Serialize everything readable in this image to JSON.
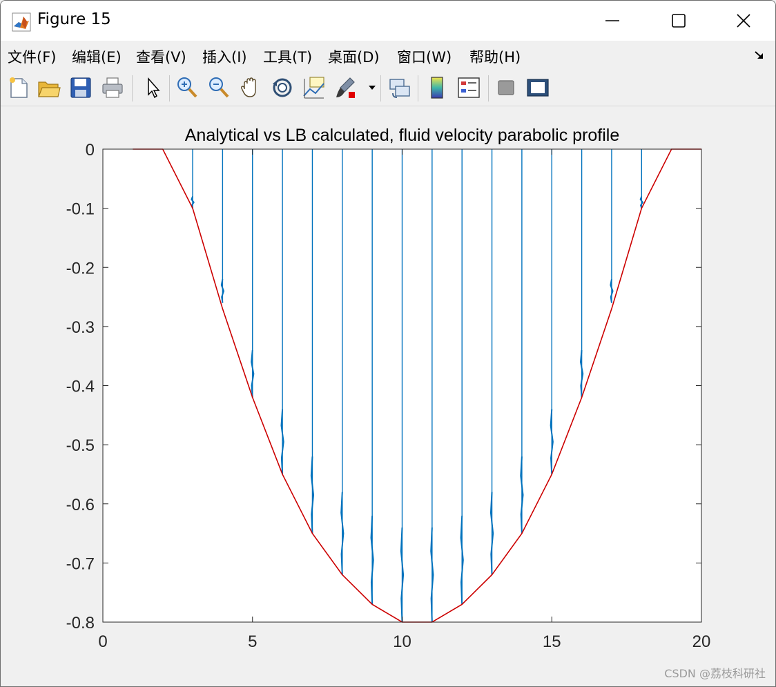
{
  "window": {
    "title": "Figure 15"
  },
  "icons": {
    "app": "matlab-icon",
    "minimize": "minimize-icon",
    "maximize": "maximize-icon",
    "close": "close-icon",
    "dock": "dock-arrow-icon"
  },
  "menubar": {
    "items": [
      "文件(F)",
      "编辑(E)",
      "查看(V)",
      "插入(I)",
      "工具(T)",
      "桌面(D)",
      "窗口(W)",
      "帮助(H)"
    ]
  },
  "toolbar": {
    "buttons": [
      "new-figure",
      "open-file",
      "save",
      "print",
      "select-pointer",
      "zoom-in",
      "zoom-out",
      "pan-hand",
      "rotate-3d",
      "data-cursor",
      "brush",
      "link-plot",
      "insert-colorbar",
      "insert-legend",
      "hide-plot-tools",
      "show-plot-tools"
    ]
  },
  "colors": {
    "analytical": "#cc0000",
    "lb": "#0072bd",
    "axes_bg": "#ffffff",
    "figure_bg": "#f0f0f0"
  },
  "chart_data": {
    "type": "line",
    "title": "Analytical vs LB calculated, fluid velocity parabolic profile",
    "xlabel": "",
    "ylabel": "",
    "xlim": [
      0,
      20
    ],
    "ylim": [
      -0.8,
      0
    ],
    "xticks": [
      "0",
      "5",
      "10",
      "15",
      "20"
    ],
    "yticks": [
      "0",
      "-0.1",
      "-0.2",
      "-0.3",
      "-0.4",
      "-0.5",
      "-0.6",
      "-0.7",
      "-0.8"
    ],
    "grid": false,
    "box": true,
    "series": [
      {
        "style": "red-line",
        "x": [
          1,
          2,
          3,
          4,
          5,
          6,
          7,
          8,
          9,
          10,
          11,
          12,
          13,
          14,
          15,
          16,
          17,
          18,
          19,
          20
        ],
        "y": [
          0,
          0,
          -0.1,
          -0.27,
          -0.42,
          -0.55,
          -0.65,
          -0.72,
          -0.77,
          -0.8,
          -0.8,
          -0.77,
          -0.72,
          -0.65,
          -0.55,
          -0.42,
          -0.27,
          -0.1,
          0,
          0
        ]
      },
      {
        "style": "blue-stems",
        "x": [
          3,
          4,
          5,
          6,
          7,
          8,
          9,
          10,
          11,
          12,
          13,
          14,
          15,
          16,
          17,
          18
        ],
        "y_bottom": [
          -0.1,
          -0.26,
          -0.42,
          -0.55,
          -0.65,
          -0.72,
          -0.77,
          -0.8,
          -0.8,
          -0.77,
          -0.72,
          -0.65,
          -0.55,
          -0.42,
          -0.26,
          -0.1
        ],
        "y_osc_top": [
          -0.08,
          -0.22,
          -0.34,
          -0.44,
          -0.52,
          -0.58,
          -0.62,
          -0.64,
          -0.64,
          -0.62,
          -0.58,
          -0.52,
          -0.44,
          -0.34,
          -0.22,
          -0.08
        ]
      }
    ]
  },
  "watermark": "CSDN @荔枝科研社"
}
